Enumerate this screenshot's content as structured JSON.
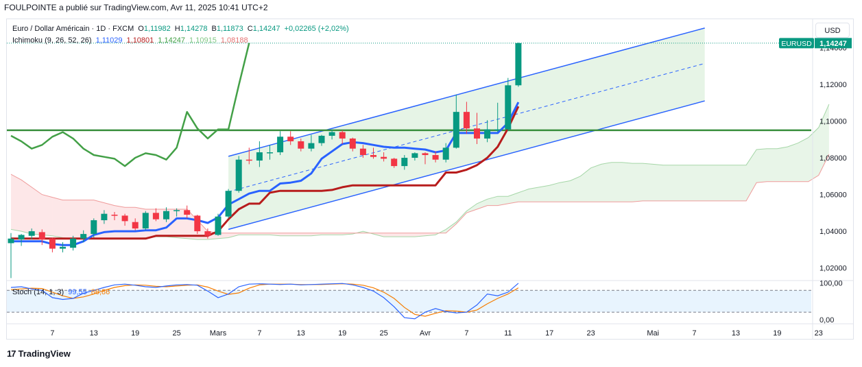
{
  "header": {
    "caption": "FOULPOINTE a publié sur TradingView.com, Avr 11, 2025 10:41 UTC+2"
  },
  "legend": {
    "symbol": "Euro / Dollar Américain · 1D · FXCM",
    "o_label": "O",
    "o": "1,11982",
    "h_label": "H",
    "h": "1,14278",
    "b_label": "B",
    "b": "1,11873",
    "c_label": "C",
    "c": "1,14247",
    "change": "+0,02265 (+2,02%)",
    "ichimoku_label": "Ichimoku (9, 26, 52, 26)",
    "ichimoku_values": [
      "1,11029",
      "1,10801",
      "1,14247",
      "1,10915",
      "1,08188"
    ],
    "stoch_label": "Stoch (14, 1, 3)",
    "stoch_values": [
      "99,55",
      "86,86"
    ]
  },
  "currency_button": "USD",
  "price_tag": {
    "symbol": "EURUSD",
    "value": "1,14247"
  },
  "brand": {
    "logo_text": "TradingView",
    "logo_mark": "17"
  },
  "colors": {
    "up": "#089981",
    "down": "#f23645",
    "tenkan": "#2962ff",
    "kijun": "#b71c1c",
    "chikou": "#43a047",
    "span_a": "#a5d6a7",
    "span_b": "#ef9a9a",
    "channel": "#2962ff",
    "support": "#388e3c",
    "stoch_k": "#2962ff",
    "stoch_d": "#f57c00"
  },
  "chart_data": [
    {
      "type": "candlestick",
      "title": "Euro / Dollar Américain · 1D · FXCM",
      "y_axis_ticks": [
        "1,02000",
        "1,04000",
        "1,06000",
        "1,08000",
        "1,10000",
        "1,12000",
        "1,14000"
      ],
      "y_axis_tick_values": [
        1.02,
        1.04,
        1.06,
        1.08,
        1.1,
        1.12,
        1.14
      ],
      "ylim": [
        1.0135,
        1.1555
      ],
      "x_axis_ticks": [
        "7",
        "13",
        "19",
        "25",
        "Mars",
        "7",
        "13",
        "19",
        "25",
        "Avr",
        "7",
        "11",
        "17",
        "23",
        "Mai",
        "7",
        "13",
        "19",
        "23"
      ],
      "x_axis_tick_index": [
        4,
        8,
        12,
        16,
        20,
        24,
        28,
        32,
        36,
        40,
        44,
        48,
        52,
        56,
        62,
        66,
        70,
        74,
        78
      ],
      "x_index_range": [
        0,
        79
      ],
      "candles": [
        {
          "d": "2025-02-03",
          "o": 1.0335,
          "h": 1.039,
          "l": 1.0145,
          "c": 1.036
        },
        {
          "d": "2025-02-04",
          "o": 1.0355,
          "h": 1.0385,
          "l": 1.032,
          "c": 1.038
        },
        {
          "d": "2025-02-05",
          "o": 1.0375,
          "h": 1.0415,
          "l": 1.0355,
          "c": 1.04
        },
        {
          "d": "2025-02-06",
          "o": 1.0395,
          "h": 1.041,
          "l": 1.0325,
          "c": 1.0355
        },
        {
          "d": "2025-02-07",
          "o": 1.036,
          "h": 1.0365,
          "l": 1.0285,
          "c": 1.0305
        },
        {
          "d": "2025-02-10",
          "o": 1.0305,
          "h": 1.034,
          "l": 1.0285,
          "c": 1.0315
        },
        {
          "d": "2025-02-11",
          "o": 1.031,
          "h": 1.0375,
          "l": 1.0295,
          "c": 1.036
        },
        {
          "d": "2025-02-12",
          "o": 1.036,
          "h": 1.0405,
          "l": 1.034,
          "c": 1.0385
        },
        {
          "d": "2025-02-13",
          "o": 1.0385,
          "h": 1.047,
          "l": 1.0365,
          "c": 1.046
        },
        {
          "d": "2025-02-14",
          "o": 1.046,
          "h": 1.0515,
          "l": 1.044,
          "c": 1.0495
        },
        {
          "d": "2025-02-17",
          "o": 1.049,
          "h": 1.0505,
          "l": 1.046,
          "c": 1.0485
        },
        {
          "d": "2025-02-18",
          "o": 1.0485,
          "h": 1.0495,
          "l": 1.043,
          "c": 1.0455
        },
        {
          "d": "2025-02-19",
          "o": 1.045,
          "h": 1.047,
          "l": 1.0405,
          "c": 1.0415
        },
        {
          "d": "2025-02-20",
          "o": 1.0415,
          "h": 1.051,
          "l": 1.0405,
          "c": 1.05
        },
        {
          "d": "2025-02-21",
          "o": 1.05,
          "h": 1.0525,
          "l": 1.0455,
          "c": 1.0465
        },
        {
          "d": "2025-02-24",
          "o": 1.0465,
          "h": 1.053,
          "l": 1.045,
          "c": 1.051
        },
        {
          "d": "2025-02-25",
          "o": 1.051,
          "h": 1.0525,
          "l": 1.048,
          "c": 1.0515
        },
        {
          "d": "2025-02-26",
          "o": 1.0515,
          "h": 1.054,
          "l": 1.047,
          "c": 1.049
        },
        {
          "d": "2025-02-27",
          "o": 1.0485,
          "h": 1.049,
          "l": 1.0385,
          "c": 1.04
        },
        {
          "d": "2025-02-28",
          "o": 1.04,
          "h": 1.0415,
          "l": 1.036,
          "c": 1.0375
        },
        {
          "d": "2025-03-03",
          "o": 1.038,
          "h": 1.0495,
          "l": 1.0375,
          "c": 1.048
        },
        {
          "d": "2025-03-04",
          "o": 1.048,
          "h": 1.063,
          "l": 1.047,
          "c": 1.062
        },
        {
          "d": "2025-03-05",
          "o": 1.062,
          "h": 1.081,
          "l": 1.061,
          "c": 1.079
        },
        {
          "d": "2025-03-06",
          "o": 1.079,
          "h": 1.0855,
          "l": 1.0765,
          "c": 1.0785
        },
        {
          "d": "2025-03-07",
          "o": 1.0785,
          "h": 1.089,
          "l": 1.075,
          "c": 1.083
        },
        {
          "d": "2025-03-10",
          "o": 1.083,
          "h": 1.087,
          "l": 1.079,
          "c": 1.083
        },
        {
          "d": "2025-03-11",
          "o": 1.083,
          "h": 1.0945,
          "l": 1.0815,
          "c": 1.0915
        },
        {
          "d": "2025-03-12",
          "o": 1.0915,
          "h": 1.0945,
          "l": 1.087,
          "c": 1.089
        },
        {
          "d": "2025-03-13",
          "o": 1.089,
          "h": 1.0905,
          "l": 1.0835,
          "c": 1.085
        },
        {
          "d": "2025-03-14",
          "o": 1.085,
          "h": 1.0925,
          "l": 1.0835,
          "c": 1.088
        },
        {
          "d": "2025-03-17",
          "o": 1.088,
          "h": 1.0925,
          "l": 1.0865,
          "c": 1.092
        },
        {
          "d": "2025-03-18",
          "o": 1.092,
          "h": 1.0955,
          "l": 1.09,
          "c": 1.094
        },
        {
          "d": "2025-03-19",
          "o": 1.094,
          "h": 1.095,
          "l": 1.0875,
          "c": 1.0905
        },
        {
          "d": "2025-03-20",
          "o": 1.0905,
          "h": 1.091,
          "l": 1.0835,
          "c": 1.085
        },
        {
          "d": "2025-03-21",
          "o": 1.085,
          "h": 1.087,
          "l": 1.08,
          "c": 1.0815
        },
        {
          "d": "2025-03-24",
          "o": 1.0815,
          "h": 1.0855,
          "l": 1.0795,
          "c": 1.0805
        },
        {
          "d": "2025-03-25",
          "o": 1.0805,
          "h": 1.083,
          "l": 1.078,
          "c": 1.0795
        },
        {
          "d": "2025-03-26",
          "o": 1.0795,
          "h": 1.08,
          "l": 1.0745,
          "c": 1.0755
        },
        {
          "d": "2025-03-27",
          "o": 1.0755,
          "h": 1.0815,
          "l": 1.0735,
          "c": 1.08
        },
        {
          "d": "2025-03-28",
          "o": 1.08,
          "h": 1.083,
          "l": 1.0785,
          "c": 1.0825
        },
        {
          "d": "2025-03-31",
          "o": 1.0825,
          "h": 1.083,
          "l": 1.0765,
          "c": 1.0815
        },
        {
          "d": "2025-04-01",
          "o": 1.0815,
          "h": 1.0835,
          "l": 1.0775,
          "c": 1.079
        },
        {
          "d": "2025-04-02",
          "o": 1.079,
          "h": 1.088,
          "l": 1.0775,
          "c": 1.0855
        },
        {
          "d": "2025-04-03",
          "o": 1.0855,
          "h": 1.1145,
          "l": 1.085,
          "c": 1.105
        },
        {
          "d": "2025-04-04",
          "o": 1.105,
          "h": 1.1105,
          "l": 1.093,
          "c": 1.096
        },
        {
          "d": "2025-04-07",
          "o": 1.096,
          "h": 1.1045,
          "l": 1.0875,
          "c": 1.0905
        },
        {
          "d": "2025-04-08",
          "o": 1.0905,
          "h": 1.1005,
          "l": 1.0885,
          "c": 1.0955
        },
        {
          "d": "2025-04-09",
          "o": 1.0955,
          "h": 1.11,
          "l": 1.094,
          "c": 1.0955
        },
        {
          "d": "2025-04-10",
          "o": 1.0955,
          "h": 1.1235,
          "l": 1.0945,
          "c": 1.1195
        },
        {
          "d": "2025-04-11",
          "o": 1.1195,
          "h": 1.1428,
          "l": 1.1187,
          "c": 1.1425
        }
      ],
      "tenkan": [
        1.0345,
        1.0345,
        1.0345,
        1.0345,
        1.033,
        1.0325,
        1.0325,
        1.0345,
        1.038,
        1.0395,
        1.04,
        1.04,
        1.04,
        1.0405,
        1.0405,
        1.042,
        1.047,
        1.047,
        1.046,
        1.0445,
        1.0475,
        1.0545,
        1.0575,
        1.0605,
        1.062,
        1.062,
        1.066,
        1.0665,
        1.0675,
        1.0715,
        1.0795,
        1.0835,
        1.0875,
        1.0885,
        1.088,
        1.087,
        1.086,
        1.0855,
        1.0855,
        1.085,
        1.0845,
        1.083,
        1.084,
        1.0935,
        1.0935,
        1.0935,
        1.0935,
        1.0935,
        1.099,
        1.1103
      ],
      "kijun": [
        1.036,
        1.036,
        1.036,
        1.036,
        1.036,
        1.036,
        1.036,
        1.036,
        1.036,
        1.036,
        1.036,
        1.036,
        1.036,
        1.036,
        1.0375,
        1.0375,
        1.0375,
        1.0375,
        1.0375,
        1.0375,
        1.04,
        1.0465,
        1.052,
        1.055,
        1.055,
        1.061,
        1.062,
        1.062,
        1.062,
        1.062,
        1.062,
        1.0625,
        1.064,
        1.065,
        1.065,
        1.065,
        1.065,
        1.065,
        1.065,
        1.065,
        1.065,
        1.065,
        1.072,
        1.072,
        1.0735,
        1.076,
        1.08,
        1.086,
        1.096,
        1.108
      ],
      "chikou": [
        1.092,
        1.089,
        1.085,
        1.087,
        1.0915,
        1.094,
        1.0905,
        1.085,
        1.0815,
        1.0805,
        1.0795,
        1.0755,
        1.08,
        1.0825,
        1.0815,
        1.079,
        1.0855,
        1.105,
        1.096,
        1.0905,
        1.0955,
        1.0955,
        1.1195,
        1.1425
      ],
      "span_a": [
        1.041,
        1.04,
        1.0385,
        1.038,
        1.0375,
        1.0365,
        1.036,
        1.036,
        1.036,
        1.036,
        1.036,
        1.036,
        1.036,
        1.0365,
        1.037,
        1.037,
        1.0365,
        1.036,
        1.0355,
        1.0355,
        1.036,
        1.0365,
        1.038,
        1.038,
        1.038,
        1.038,
        1.0375,
        1.0375,
        1.0375,
        1.0375,
        1.038,
        1.038,
        1.038,
        1.0385,
        1.04,
        1.0385,
        1.037,
        1.037,
        1.037,
        1.037,
        1.0375,
        1.038,
        1.041,
        1.045,
        1.051,
        1.055,
        1.0575,
        1.059,
        1.059,
        1.061,
        1.063,
        1.064,
        1.065,
        1.0665,
        1.0675,
        1.07,
        1.0745,
        1.0765,
        1.0775,
        1.0775,
        1.077,
        1.077,
        1.0765,
        1.076,
        1.076,
        1.076,
        1.076,
        1.076,
        1.076,
        1.076,
        1.076,
        1.076,
        1.0845,
        1.085,
        1.085,
        1.086,
        1.088,
        1.091,
        1.0965,
        1.1092
      ],
      "span_b": [
        1.071,
        1.068,
        1.064,
        1.06,
        1.0585,
        1.057,
        1.057,
        1.057,
        1.057,
        1.0555,
        1.054,
        1.053,
        1.053,
        1.052,
        1.052,
        1.052,
        1.052,
        1.052,
        1.046,
        1.04,
        1.039,
        1.039,
        1.039,
        1.039,
        1.039,
        1.039,
        1.039,
        1.039,
        1.039,
        1.039,
        1.039,
        1.039,
        1.039,
        1.039,
        1.039,
        1.039,
        1.039,
        1.039,
        1.039,
        1.039,
        1.039,
        1.039,
        1.039,
        1.044,
        1.05,
        1.052,
        1.054,
        1.054,
        1.055,
        1.056,
        1.056,
        1.056,
        1.056,
        1.056,
        1.056,
        1.056,
        1.056,
        1.056,
        1.056,
        1.056,
        1.056,
        1.0565,
        1.0565,
        1.0565,
        1.0565,
        1.0565,
        1.0565,
        1.0565,
        1.0565,
        1.0565,
        1.0565,
        1.0565,
        1.0665,
        1.067,
        1.067,
        1.067,
        1.067,
        1.067,
        1.0705,
        1.0819
      ],
      "support_level": 1.095,
      "channel": {
        "upper": [
          [
            21,
            1.0808
          ],
          [
            67,
            1.1507
          ]
        ],
        "mid": [
          [
            21,
            1.0615
          ],
          [
            67,
            1.1314
          ]
        ],
        "lower": [
          [
            21,
            1.041
          ],
          [
            67,
            1.111
          ]
        ]
      },
      "current_price": 1.14247
    },
    {
      "type": "line",
      "title": "Stoch (14, 1, 3)",
      "y_axis_ticks": [
        "100,00",
        "0,00"
      ],
      "ylim": [
        -8,
        105
      ],
      "bands": [
        80,
        20
      ],
      "k": [
        88,
        90,
        84,
        80,
        60,
        55,
        58,
        72,
        80,
        88,
        95,
        97,
        94,
        90,
        88,
        92,
        95,
        96,
        94,
        78,
        60,
        70,
        90,
        97,
        98,
        97,
        96,
        97,
        95,
        96,
        97,
        98,
        99,
        95,
        88,
        78,
        60,
        35,
        5,
        2,
        20,
        30,
        22,
        18,
        20,
        40,
        70,
        65,
        75,
        99.55
      ],
      "d": [
        82,
        84,
        86,
        85,
        75,
        65,
        58,
        62,
        70,
        80,
        88,
        93,
        95,
        94,
        91,
        90,
        92,
        94,
        95,
        89,
        78,
        69,
        73,
        86,
        95,
        97,
        97,
        97,
        96,
        96,
        96,
        97,
        98,
        97,
        94,
        87,
        75,
        58,
        33,
        14,
        9,
        17,
        24,
        23,
        20,
        26,
        43,
        58,
        70,
        86.86
      ]
    }
  ]
}
